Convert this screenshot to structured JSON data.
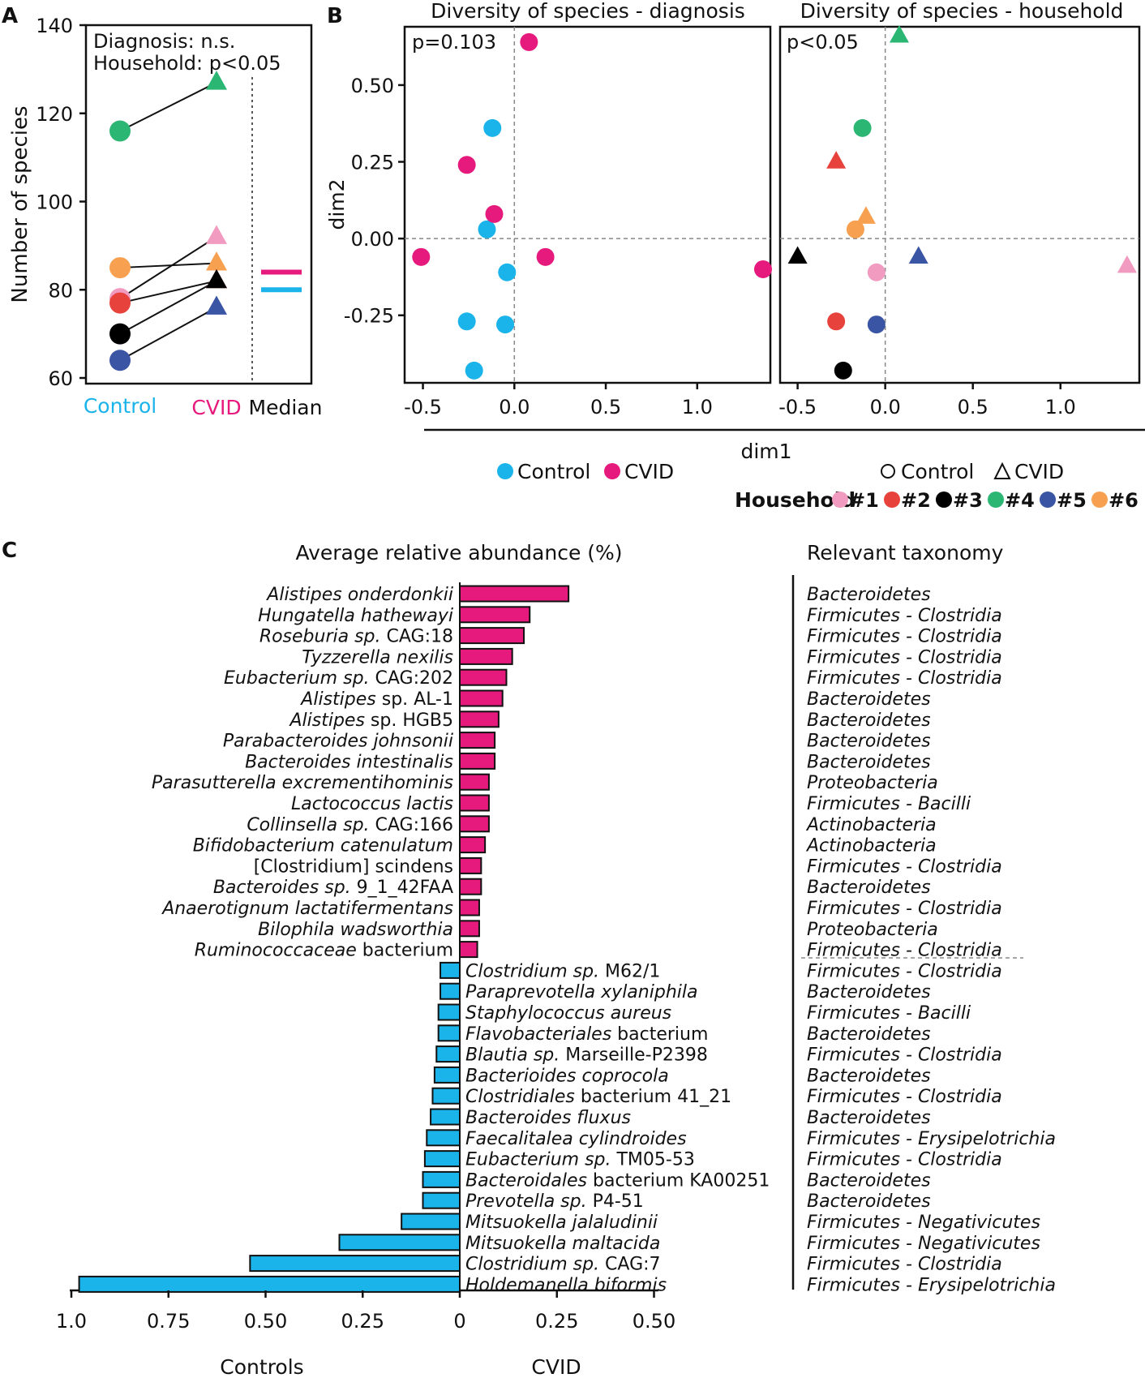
{
  "chart_data": [
    {
      "panel": "A",
      "type": "scatter",
      "title": "",
      "ylabel": "Number of species",
      "ylim": [
        60,
        140
      ],
      "yticks": [
        60,
        80,
        100,
        120,
        140
      ],
      "annotations": [
        "Diagnosis: n.s.",
        "Household: p<0.05"
      ],
      "x_categories": [
        "Control",
        "CVID",
        "Median"
      ],
      "pairs": [
        {
          "household": "#4",
          "control": 116,
          "cvid": 127
        },
        {
          "household": "#1",
          "control": 78,
          "cvid": 92
        },
        {
          "household": "#6",
          "control": 85,
          "cvid": 86
        },
        {
          "household": "#2",
          "control": 77,
          "cvid": 82
        },
        {
          "household": "#3",
          "control": 70,
          "cvid": 82
        },
        {
          "household": "#5",
          "control": 64,
          "cvid": 76
        }
      ],
      "medians": {
        "CVID": 84,
        "Control": 80
      }
    },
    {
      "panel": "B",
      "type": "scatter",
      "title": "Diversity of species - diagnosis",
      "xlabel": "dim1",
      "ylabel": "dim2",
      "xlim": [
        -0.6,
        1.4
      ],
      "ylim": [
        -0.47,
        0.69
      ],
      "xticks": [
        "-0.5",
        "0.0",
        "0.5",
        "1.0"
      ],
      "yticks": [
        "0.50",
        "0.25",
        "0.00",
        "-0.25"
      ],
      "annotation": "p=0.103",
      "series": [
        {
          "name": "Control",
          "points": [
            [
              -0.12,
              0.36
            ],
            [
              -0.15,
              0.03
            ],
            [
              -0.04,
              -0.11
            ],
            [
              -0.26,
              -0.27
            ],
            [
              -0.05,
              -0.28
            ],
            [
              -0.22,
              -0.43
            ]
          ]
        },
        {
          "name": "CVID",
          "points": [
            [
              0.08,
              0.64
            ],
            [
              -0.26,
              0.24
            ],
            [
              -0.11,
              0.08
            ],
            [
              -0.51,
              -0.06
            ],
            [
              0.17,
              -0.06
            ],
            [
              1.36,
              -0.1
            ]
          ]
        }
      ]
    },
    {
      "panel": "B2",
      "type": "scatter",
      "title": "Diversity of species - household",
      "xlabel": "dim1",
      "xlim": [
        -0.6,
        1.45
      ],
      "ylim": [
        -0.47,
        0.69
      ],
      "xticks": [
        "-0.5",
        "0.0",
        "0.5",
        "1.0"
      ],
      "annotation": "p<0.05",
      "points": [
        {
          "household": "#1",
          "group": "Control",
          "x": -0.05,
          "y": -0.11
        },
        {
          "household": "#1",
          "group": "CVID",
          "x": 1.38,
          "y": -0.09
        },
        {
          "household": "#2",
          "group": "Control",
          "x": -0.28,
          "y": -0.27
        },
        {
          "household": "#2",
          "group": "CVID",
          "x": -0.28,
          "y": 0.25
        },
        {
          "household": "#3",
          "group": "Control",
          "x": -0.24,
          "y": -0.43
        },
        {
          "household": "#3",
          "group": "CVID",
          "x": -0.5,
          "y": -0.06
        },
        {
          "household": "#4",
          "group": "Control",
          "x": -0.13,
          "y": 0.36
        },
        {
          "household": "#4",
          "group": "CVID",
          "x": 0.08,
          "y": 0.66
        },
        {
          "household": "#5",
          "group": "Control",
          "x": -0.05,
          "y": -0.28
        },
        {
          "household": "#5",
          "group": "CVID",
          "x": 0.19,
          "y": -0.06
        },
        {
          "household": "#6",
          "group": "Control",
          "x": -0.17,
          "y": 0.03
        },
        {
          "household": "#6",
          "group": "CVID",
          "x": -0.11,
          "y": 0.07
        }
      ]
    },
    {
      "panel": "C",
      "type": "bar",
      "orientation": "horizontal",
      "title": "Average relative abundance (%)",
      "right_title": "Relevant taxonomy",
      "xlim": [
        -1.0,
        0.5
      ],
      "xticks": [
        "1.0",
        "0.75",
        "0.50",
        "0.25",
        "0",
        "0.25",
        "0.50"
      ],
      "xlabels": [
        "Controls",
        "CVID"
      ],
      "bars": [
        {
          "ital": "Alistipes onderdonkii",
          "rest": "",
          "value": 0.28,
          "tax": "Bacteroidetes"
        },
        {
          "ital": "Hungatella hathewayi",
          "rest": "",
          "value": 0.18,
          "tax": "Firmicutes - Clostridia"
        },
        {
          "ital": "Roseburia sp.",
          "rest": " CAG:18",
          "value": 0.165,
          "tax": "Firmicutes - Clostridia"
        },
        {
          "ital": "Tyzzerella nexilis",
          "rest": "",
          "value": 0.135,
          "tax": "Firmicutes - Clostridia"
        },
        {
          "ital": "Eubacterium sp.",
          "rest": " CAG:202",
          "value": 0.12,
          "tax": "Firmicutes - Clostridia"
        },
        {
          "ital": "Alistipes",
          "rest": " sp. AL-1",
          "value": 0.11,
          "tax": "Bacteroidetes"
        },
        {
          "ital": "Alistipes",
          "rest": " sp. HGB5",
          "value": 0.1,
          "tax": "Bacteroidetes"
        },
        {
          "ital": "Parabacteroides johnsonii",
          "rest": "",
          "value": 0.09,
          "tax": "Bacteroidetes"
        },
        {
          "ital": "Bacteroides intestinalis",
          "rest": "",
          "value": 0.09,
          "tax": "Bacteroidetes"
        },
        {
          "ital": "Parasutterella excrementihominis",
          "rest": "",
          "value": 0.075,
          "tax": "Proteobacteria"
        },
        {
          "ital": "Lactococcus lactis",
          "rest": "",
          "value": 0.075,
          "tax": "Firmicutes - Bacilli"
        },
        {
          "ital": "Collinsella sp.",
          "rest": " CAG:166",
          "value": 0.075,
          "tax": "Actinobacteria"
        },
        {
          "ital": "Bifidobacterium catenulatum",
          "rest": "",
          "value": 0.065,
          "tax": "Actinobacteria"
        },
        {
          "ital": "",
          "rest": "[Clostridium] scindens",
          "value": 0.055,
          "tax": "Firmicutes - Clostridia"
        },
        {
          "ital": "Bacteroides sp.",
          "rest": " 9_1_42FAA",
          "value": 0.055,
          "tax": "Bacteroidetes"
        },
        {
          "ital": "Anaerotignum lactatifermentans",
          "rest": "",
          "value": 0.05,
          "tax": "Firmicutes - Clostridia"
        },
        {
          "ital": "Bilophila wadsworthia",
          "rest": "",
          "value": 0.05,
          "tax": "Proteobacteria"
        },
        {
          "ital": "Ruminococcaceae",
          "rest": " bacterium",
          "value": 0.045,
          "tax": "Firmicutes - Clostridia"
        },
        {
          "ital": "Clostridium sp.",
          "rest": " M62/1",
          "value": -0.05,
          "tax": "Firmicutes - Clostridia"
        },
        {
          "ital": "Paraprevotella xylaniphila",
          "rest": "",
          "value": -0.05,
          "tax": "Bacteroidetes"
        },
        {
          "ital": "Staphylococcus aureus",
          "rest": "",
          "value": -0.055,
          "tax": "Firmicutes - Bacilli"
        },
        {
          "ital": "Flavobacteriales",
          "rest": " bacterium",
          "value": -0.055,
          "tax": "Bacteroidetes"
        },
        {
          "ital": "Blautia sp.",
          "rest": " Marseille-P2398",
          "value": -0.06,
          "tax": "Firmicutes - Clostridia"
        },
        {
          "ital": "Bacterioides coprocola",
          "rest": "",
          "value": -0.065,
          "tax": "Bacteroidetes"
        },
        {
          "ital": "Clostridiales",
          "rest": " bacterium 41_21",
          "value": -0.07,
          "tax": "Firmicutes - Clostridia"
        },
        {
          "ital": "Bacteroides fluxus",
          "rest": "",
          "value": -0.075,
          "tax": "Bacteroidetes"
        },
        {
          "ital": "Faecalitalea cylindroides",
          "rest": "",
          "value": -0.085,
          "tax": "Firmicutes - Erysipelotrichia"
        },
        {
          "ital": "Eubacterium sp.",
          "rest": " TM05-53",
          "value": -0.09,
          "tax": "Firmicutes - Clostridia"
        },
        {
          "ital": "Bacteroidales",
          "rest": " bacterium KA00251",
          "value": -0.095,
          "tax": "Bacteroidetes"
        },
        {
          "ital": "Prevotella sp.",
          "rest": " P4-51",
          "value": -0.095,
          "tax": "Bacteroidetes"
        },
        {
          "ital": "Mitsuokella jalaludinii",
          "rest": "",
          "value": -0.15,
          "tax": "Firmicutes - Negativicutes"
        },
        {
          "ital": "Mitsuokella maltacida",
          "rest": "",
          "value": -0.31,
          "tax": "Firmicutes - Negativicutes"
        },
        {
          "ital": "Clostridium sp.",
          "rest": " CAG:7",
          "value": -0.54,
          "tax": "Firmicutes - Clostridia"
        },
        {
          "ital": "Holdemanella biformis",
          "rest": "",
          "value": -0.98,
          "tax": "Firmicutes - Erysipelotrichia"
        }
      ]
    }
  ],
  "panel_labels": {
    "a": "A",
    "b": "B",
    "c": "C"
  },
  "legend_b": {
    "control": "Control",
    "cvid": "CVID"
  },
  "legend_shape": {
    "circle": "Control",
    "triangle": "CVID"
  },
  "legend_household": {
    "title": "Household",
    "items": [
      "#1",
      "#2",
      "#3",
      "#4",
      "#5",
      "#6"
    ]
  },
  "colors": {
    "control": "#1ab4ea",
    "cvid": "#e6197d",
    "households": {
      "#1": "#f29bc1",
      "#2": "#e8423c",
      "#3": "#000000",
      "#4": "#2bb673",
      "#5": "#3a55a4",
      "#6": "#f7a050"
    }
  }
}
